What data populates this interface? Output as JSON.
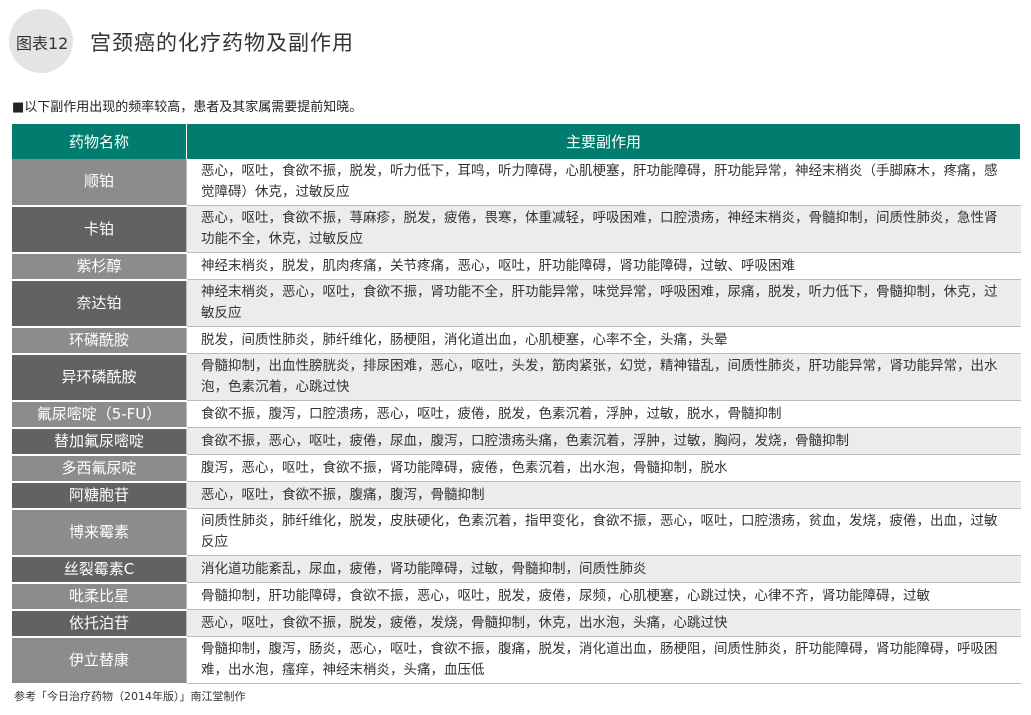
{
  "header": {
    "badge": "图表12",
    "title": "宫颈癌的化疗药物及副作用",
    "note": "■以下副作用出现的频率较高，患者及其家属需要提前知晓。"
  },
  "table": {
    "columns": [
      "药物名称",
      "主要副作用"
    ],
    "rows": [
      {
        "drug": "顺铂",
        "effects": "恶心，呕吐，食欲不振，脱发，听力低下，耳鸣，听力障碍，心肌梗塞，肝功能障碍，肝功能异常，神经末梢炎（手脚麻木，疼痛，感觉障碍）休克，过敏反应"
      },
      {
        "drug": "卡铂",
        "effects": "恶心，呕吐，食欲不振，荨麻疹，脱发，疲倦，畏寒，体重减轻，呼吸困难，口腔溃疡，神经末梢炎，骨髓抑制，间质性肺炎，急性肾功能不全，休克，过敏反应"
      },
      {
        "drug": "紫杉醇",
        "effects": "神经末梢炎，脱发，肌肉疼痛，关节疼痛，恶心，呕吐，肝功能障碍，肾功能障碍，过敏、呼吸困难"
      },
      {
        "drug": "奈达铂",
        "effects": "神经末梢炎，恶心，呕吐，食欲不振，肾功能不全，肝功能异常，味觉异常，呼吸困难，尿痛，脱发，听力低下，骨髓抑制，休克，过敏反应"
      },
      {
        "drug": "环磷酰胺",
        "effects": "脱发，间质性肺炎，肺纤维化，肠梗阻，消化道出血，心肌梗塞，心率不全，头痛，头晕"
      },
      {
        "drug": "异环磷酰胺",
        "effects": "骨髓抑制，出血性膀胱炎，排尿困难，恶心，呕吐，头发，筋肉紧张，幻觉，精神错乱，间质性肺炎，肝功能异常，肾功能异常，出水泡，色素沉着，心跳过快"
      },
      {
        "drug": "氟尿嘧啶（5-FU）",
        "effects": "食欲不振，腹泻，口腔溃疡，恶心，呕吐，疲倦，脱发，色素沉着，浮肿，过敏，脱水，骨髓抑制"
      },
      {
        "drug": "替加氟尿嘧啶",
        "effects": "食欲不振，恶心，呕吐，疲倦，尿血，腹泻，口腔溃疡头痛，色素沉着，浮肿，过敏，胸闷，发烧，骨髓抑制"
      },
      {
        "drug": "多西氟尿啶",
        "effects": "腹泻，恶心，呕吐，食欲不振，肾功能障碍，疲倦，色素沉着，出水泡，骨髓抑制，脱水"
      },
      {
        "drug": "阿糖胞苷",
        "effects": "恶心，呕吐，食欲不振，腹痛，腹泻，骨髓抑制"
      },
      {
        "drug": "博来霉素",
        "effects": "间质性肺炎，肺纤维化，脱发，皮肤硬化，色素沉着，指甲变化，食欲不振，恶心，呕吐，口腔溃疡，贫血，发烧，疲倦，出血，过敏反应"
      },
      {
        "drug": "丝裂霉素C",
        "effects": "消化道功能紊乱，尿血，疲倦，肾功能障碍，过敏，骨髓抑制，间质性肺炎"
      },
      {
        "drug": "吡柔比星",
        "effects": "骨髓抑制，肝功能障碍，食欲不振，恶心，呕吐，脱发，疲倦，尿频，心肌梗塞，心跳过快，心律不齐，肾功能障碍，过敏"
      },
      {
        "drug": "依托泊苷",
        "effects": "恶心，呕吐，食欲不振，脱发，疲倦，发烧，骨髓抑制，休克，出水泡，头痛，心跳过快"
      },
      {
        "drug": "伊立替康",
        "effects": "骨髓抑制，腹泻，肠炎，恶心，呕吐，食欲不振，腹痛，脱发，消化道出血，肠梗阻，间质性肺炎，肝功能障碍，肾功能障碍，呼吸困难，出水泡，瘙痒，神经末梢炎，头痛，血压低"
      }
    ]
  },
  "footer": {
    "source": "参考「今日治疗药物（2014年版）」南江堂制作"
  },
  "colors": {
    "header_bg": "#007d6e",
    "name_light": "#8a8c8e",
    "name_dark": "#606264"
  }
}
